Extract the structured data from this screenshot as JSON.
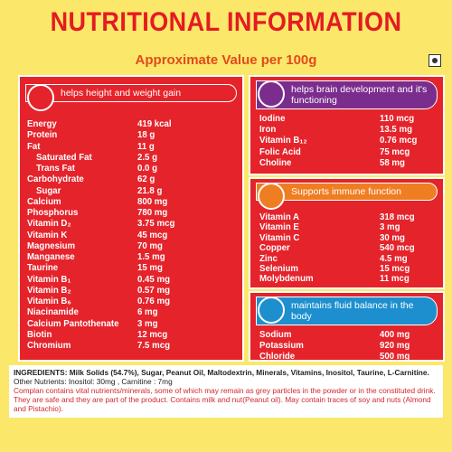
{
  "header": {
    "title": "NUTRITIONAL INFORMATION",
    "subtitle": "Approximate Value per 100g"
  },
  "panels": [
    {
      "heading": "helps height and weight gain",
      "rows": [
        {
          "name": "Energy",
          "value": "419 kcal"
        },
        {
          "name": "Protein",
          "value": "18 g"
        },
        {
          "name": "Fat",
          "value": "11 g",
          "sub": [
            {
              "name": "Saturated Fat",
              "value": "2.5 g"
            },
            {
              "name": "Trans Fat",
              "value": "0.0 g"
            }
          ]
        },
        {
          "name": "Carbohydrate",
          "value": "62 g",
          "sub": [
            {
              "name": "Sugar",
              "value": "21.8 g"
            }
          ]
        },
        {
          "name": "Calcium",
          "value": "800 mg"
        },
        {
          "name": "Phosphorus",
          "value": "780 mg"
        },
        {
          "name": "Vitamin D₂",
          "value": "3.75 mcg"
        },
        {
          "name": "Vitamin K",
          "value": "45 mcg"
        },
        {
          "name": "Magnesium",
          "value": "70 mg"
        },
        {
          "name": "Manganese",
          "value": "1.5 mg"
        },
        {
          "name": "Taurine",
          "value": "15 mg"
        },
        {
          "name": "Vitamin B₁",
          "value": "0.45 mg"
        },
        {
          "name": "Vitamin B₂",
          "value": "0.57 mg"
        },
        {
          "name": "Vitamin B₆",
          "value": "0.76 mg"
        },
        {
          "name": "Niacinamide",
          "value": "6 mg"
        },
        {
          "name": "Calcium Pantothenate",
          "value": "3 mg"
        },
        {
          "name": "Biotin",
          "value": "12 mcg"
        },
        {
          "name": "Chromium",
          "value": "7.5 mcg"
        }
      ]
    },
    {
      "heading": "helps brain development and it's functioning",
      "rows": [
        {
          "name": "Iodine",
          "value": "110 mcg"
        },
        {
          "name": "Iron",
          "value": "13.5 mg"
        },
        {
          "name": "Vitamin B₁₂",
          "value": "0.76 mcg"
        },
        {
          "name": "Folic Acid",
          "value": "75 mcg"
        },
        {
          "name": "Choline",
          "value": "58 mg"
        }
      ]
    },
    {
      "heading": "Supports immune function",
      "rows": [
        {
          "name": "Vitamin A",
          "value": "318 mcg"
        },
        {
          "name": "Vitamin E",
          "value": "3 mg"
        },
        {
          "name": "Vitamin C",
          "value": "30 mg"
        },
        {
          "name": "Copper",
          "value": "540 mcg"
        },
        {
          "name": "Zinc",
          "value": "4.5 mg"
        },
        {
          "name": "Selenium",
          "value": "15 mcg"
        },
        {
          "name": "Molybdenum",
          "value": "11 mcg"
        }
      ]
    },
    {
      "heading": "maintains fluid balance in the body",
      "rows": [
        {
          "name": "Sodium",
          "value": "400 mg"
        },
        {
          "name": "Potassium",
          "value": "920 mg"
        },
        {
          "name": "Chloride",
          "value": "500 mg"
        }
      ]
    }
  ],
  "footer": {
    "ingredients": "INGREDIENTS: Milk Solids (54.7%), Sugar, Peanut Oil, Maltodextrin, Minerals, Vitamins, Inositol, Taurine, L-Carnitine.",
    "other": "Other Nutrients: Inositol: 30mg , Carnitine : 7mg",
    "notice": "Complan contains vital nutrients/minerals, some of which may remain as grey particles in the powder or in the constituted drink. They are safe and they are part of the product. Contains milk and nut(Peanut oil). May contain traces of soy and nuts (Almond and Pistachio)."
  }
}
